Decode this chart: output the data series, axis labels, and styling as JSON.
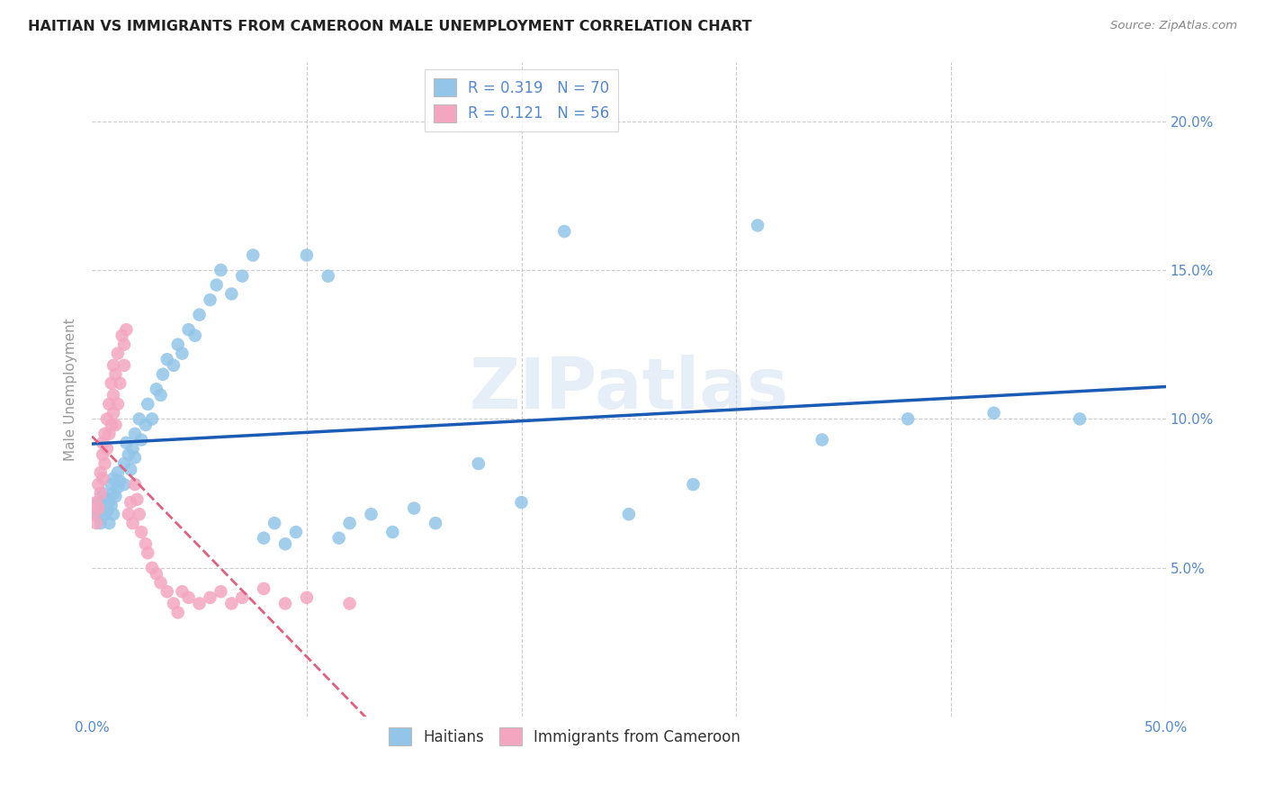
{
  "title": "HAITIAN VS IMMIGRANTS FROM CAMEROON MALE UNEMPLOYMENT CORRELATION CHART",
  "source": "Source: ZipAtlas.com",
  "ylabel": "Male Unemployment",
  "xlim": [
    0.0,
    0.5
  ],
  "ylim": [
    0.0,
    0.22
  ],
  "xticks": [
    0.0,
    0.1,
    0.2,
    0.3,
    0.4,
    0.5
  ],
  "xticklabels": [
    "0.0%",
    "",
    "",
    "",
    "",
    "50.0%"
  ],
  "yticks_left": [
    0.0,
    0.05,
    0.1,
    0.15,
    0.2
  ],
  "yticklabels_left": [
    "",
    "",
    "",
    "",
    ""
  ],
  "yticks_right": [
    0.05,
    0.1,
    0.15,
    0.2
  ],
  "yticklabels_right": [
    "5.0%",
    "10.0%",
    "15.0%",
    "20.0%"
  ],
  "haitian_color": "#92c5e8",
  "cameroon_color": "#f4a6c0",
  "haitian_line_color": "#1a5cb5",
  "cameroon_line_color": "#e06080",
  "R_haitian": 0.319,
  "N_haitian": 70,
  "R_cameroon": 0.121,
  "N_cameroon": 56,
  "legend_label_haitian": "Haitians",
  "legend_label_cameroon": "Immigrants from Cameroon",
  "watermark": "ZIPatlas",
  "background_color": "#ffffff",
  "grid_color": "#cccccc",
  "title_color": "#222222",
  "tick_color": "#5588cc",
  "haitian_x": [
    0.002,
    0.003,
    0.004,
    0.005,
    0.005,
    0.006,
    0.007,
    0.007,
    0.008,
    0.008,
    0.009,
    0.009,
    0.01,
    0.01,
    0.01,
    0.011,
    0.012,
    0.012,
    0.013,
    0.015,
    0.015,
    0.016,
    0.017,
    0.018,
    0.019,
    0.02,
    0.02,
    0.022,
    0.023,
    0.025,
    0.026,
    0.028,
    0.03,
    0.032,
    0.033,
    0.035,
    0.038,
    0.04,
    0.042,
    0.045,
    0.048,
    0.05,
    0.055,
    0.058,
    0.06,
    0.065,
    0.07,
    0.075,
    0.08,
    0.085,
    0.09,
    0.095,
    0.1,
    0.11,
    0.115,
    0.12,
    0.13,
    0.14,
    0.15,
    0.16,
    0.18,
    0.2,
    0.22,
    0.25,
    0.28,
    0.31,
    0.34,
    0.38,
    0.42,
    0.46
  ],
  "haitian_y": [
    0.068,
    0.072,
    0.065,
    0.07,
    0.075,
    0.068,
    0.073,
    0.069,
    0.072,
    0.065,
    0.078,
    0.071,
    0.075,
    0.068,
    0.08,
    0.074,
    0.082,
    0.077,
    0.079,
    0.085,
    0.078,
    0.092,
    0.088,
    0.083,
    0.09,
    0.095,
    0.087,
    0.1,
    0.093,
    0.098,
    0.105,
    0.1,
    0.11,
    0.108,
    0.115,
    0.12,
    0.118,
    0.125,
    0.122,
    0.13,
    0.128,
    0.135,
    0.14,
    0.145,
    0.15,
    0.142,
    0.148,
    0.155,
    0.06,
    0.065,
    0.058,
    0.062,
    0.155,
    0.148,
    0.06,
    0.065,
    0.068,
    0.062,
    0.07,
    0.065,
    0.085,
    0.072,
    0.163,
    0.068,
    0.078,
    0.165,
    0.093,
    0.1,
    0.102,
    0.1
  ],
  "cameroon_x": [
    0.001,
    0.002,
    0.002,
    0.003,
    0.003,
    0.004,
    0.004,
    0.005,
    0.005,
    0.005,
    0.006,
    0.006,
    0.007,
    0.007,
    0.008,
    0.008,
    0.009,
    0.009,
    0.01,
    0.01,
    0.01,
    0.011,
    0.011,
    0.012,
    0.012,
    0.013,
    0.014,
    0.015,
    0.015,
    0.016,
    0.017,
    0.018,
    0.019,
    0.02,
    0.021,
    0.022,
    0.023,
    0.025,
    0.026,
    0.028,
    0.03,
    0.032,
    0.035,
    0.038,
    0.04,
    0.042,
    0.045,
    0.05,
    0.055,
    0.06,
    0.065,
    0.07,
    0.08,
    0.09,
    0.1,
    0.12
  ],
  "cameroon_y": [
    0.068,
    0.072,
    0.065,
    0.078,
    0.07,
    0.082,
    0.075,
    0.08,
    0.088,
    0.092,
    0.085,
    0.095,
    0.09,
    0.1,
    0.095,
    0.105,
    0.098,
    0.112,
    0.102,
    0.108,
    0.118,
    0.098,
    0.115,
    0.105,
    0.122,
    0.112,
    0.128,
    0.118,
    0.125,
    0.13,
    0.068,
    0.072,
    0.065,
    0.078,
    0.073,
    0.068,
    0.062,
    0.058,
    0.055,
    0.05,
    0.048,
    0.045,
    0.042,
    0.038,
    0.035,
    0.042,
    0.04,
    0.038,
    0.04,
    0.042,
    0.038,
    0.04,
    0.043,
    0.038,
    0.04,
    0.038
  ]
}
